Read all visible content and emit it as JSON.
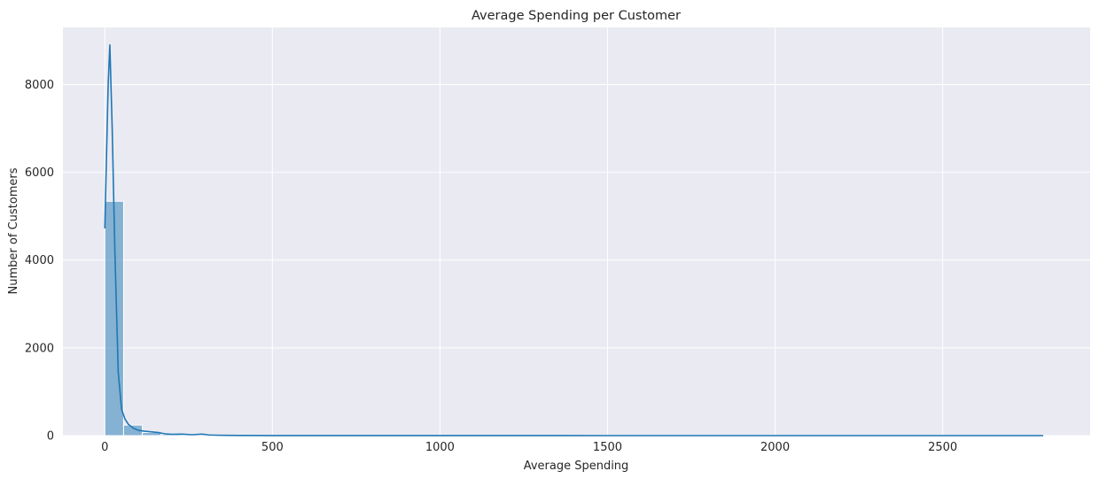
{
  "chart_data": {
    "type": "bar",
    "title": "Average Spending per Customer",
    "xlabel": "Average Spending",
    "ylabel": "Number of Customers",
    "xlim": [
      -125,
      2940
    ],
    "ylim": [
      0,
      9300
    ],
    "xticks": [
      0,
      500,
      1000,
      1500,
      2000,
      2500
    ],
    "yticks": [
      0,
      2000,
      4000,
      6000,
      8000
    ],
    "grid": true,
    "bar_color": "#1f77b4",
    "background_color": "#eaeaf2",
    "histogram": {
      "bin_width": 56,
      "bins": [
        {
          "x0": 0,
          "x1": 56,
          "count": 5340
        },
        {
          "x0": 56,
          "x1": 112,
          "count": 240
        },
        {
          "x0": 112,
          "x1": 168,
          "count": 70
        },
        {
          "x0": 168,
          "x1": 224,
          "count": 30
        },
        {
          "x0": 224,
          "x1": 280,
          "count": 15
        },
        {
          "x0": 280,
          "x1": 336,
          "count": 8
        },
        {
          "x0": 336,
          "x1": 392,
          "count": 5
        },
        {
          "x0": 392,
          "x1": 448,
          "count": 3
        },
        {
          "x0": 448,
          "x1": 504,
          "count": 2
        }
      ]
    },
    "kde": {
      "x": [
        0,
        10,
        15,
        22,
        30,
        40,
        50,
        60,
        70,
        85,
        100,
        120,
        140,
        160,
        180,
        200,
        230,
        260,
        290,
        310,
        330,
        360,
        400,
        500,
        700,
        1000,
        1500,
        2000,
        2500,
        2800
      ],
      "y": [
        4720,
        8000,
        8900,
        7000,
        4200,
        1450,
        600,
        380,
        260,
        170,
        120,
        100,
        85,
        70,
        40,
        30,
        35,
        20,
        35,
        15,
        10,
        6,
        4,
        2,
        1,
        1,
        0,
        0,
        0,
        0
      ]
    }
  }
}
